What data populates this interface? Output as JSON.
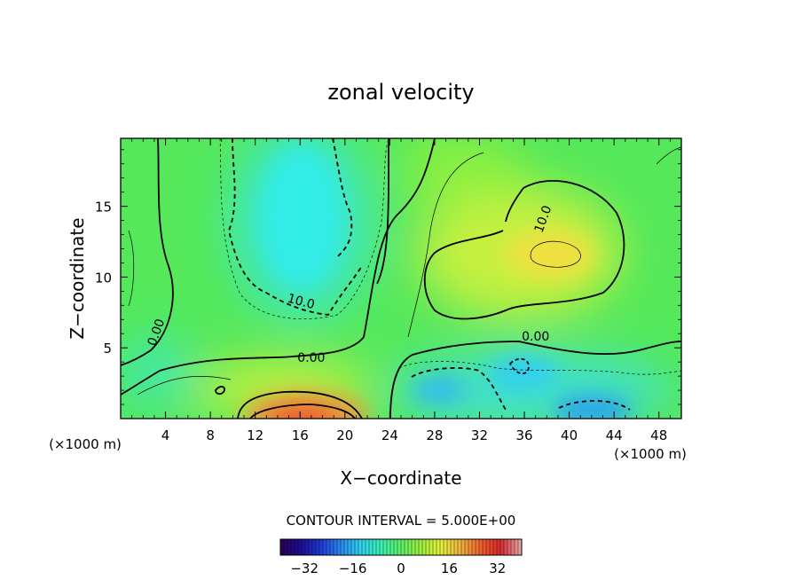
{
  "chart_data": {
    "type": "heatmap",
    "title": "zonal velocity",
    "xlabel": "X−coordinate",
    "ylabel": "Z−coordinate",
    "x_unit_left": "(×1000 m)",
    "x_unit_right": "(×1000 m)",
    "xlim": [
      0,
      50
    ],
    "ylim": [
      0,
      19.8
    ],
    "x_ticks": [
      4,
      8,
      12,
      16,
      20,
      24,
      28,
      32,
      36,
      40,
      44,
      48
    ],
    "y_ticks": [
      5,
      10,
      15
    ],
    "contour_interval_text": "CONTOUR INTERVAL = 5.000E+00",
    "colorbar": {
      "range": [
        -40,
        40
      ],
      "ticks": [
        -32,
        -16,
        0,
        16,
        32
      ],
      "colors": [
        "#2a005a",
        "#1b0f9a",
        "#1f3fd8",
        "#2a8cf0",
        "#2fd4f0",
        "#3cf0b4",
        "#5cf064",
        "#9cf03c",
        "#e6f03c",
        "#f0b43c",
        "#f0642c",
        "#d8282c",
        "#e8a0a0"
      ]
    },
    "contour_labels": [
      {
        "text": "10.0",
        "x": 38,
        "z": 14
      },
      {
        "text": "0.00",
        "x": 37,
        "z": 5.5
      },
      {
        "text": "10.0",
        "x": 16,
        "z": 8
      },
      {
        "text": "0.00",
        "x": 17,
        "z": 4
      },
      {
        "text": "0.00",
        "x": 3.5,
        "z": 6
      }
    ],
    "features": [
      {
        "kind": "jet",
        "sign": "positive",
        "x": 17,
        "z": 0.4,
        "peak": 30
      },
      {
        "kind": "jet",
        "sign": "positive",
        "x": 39,
        "z": 11.8,
        "peak": 16
      },
      {
        "kind": "jet",
        "sign": "negative",
        "x": 16,
        "z": 13,
        "peak": -12
      },
      {
        "kind": "jet",
        "sign": "negative",
        "x": 42,
        "z": 1,
        "peak": -18
      },
      {
        "kind": "jet",
        "sign": "negative",
        "x": 29,
        "z": 2.2,
        "peak": -15
      }
    ]
  }
}
